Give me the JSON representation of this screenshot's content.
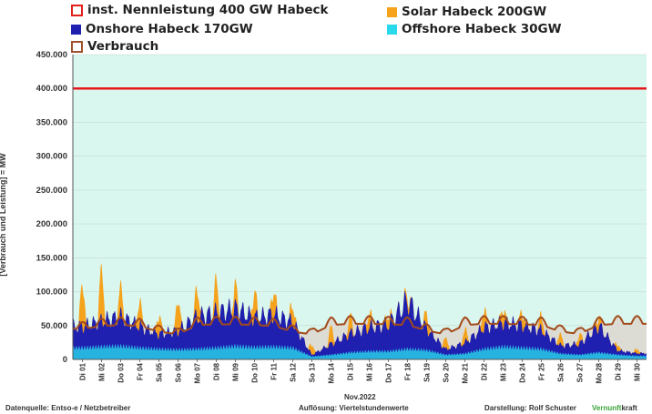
{
  "legend": {
    "cap_label": "inst. Nennleistung 400 GW Habeck",
    "solar_label": "Solar Habeck 200GW",
    "onshore_label": "Onshore Habeck 170GW",
    "offshore_label": "Offshore Habeck 30GW",
    "consumption_label": "Verbrauch"
  },
  "footer": {
    "source": "Datenquelle: Entso-e  / Netzbetreiber",
    "resolution": "Auflösung: Viertelstundenwerte",
    "author": "Darstellung:  Rolf Schuster",
    "brand_a": "Vernunft",
    "brand_b": "kraft"
  },
  "colors": {
    "background": "#d9f7ee",
    "capacity": "#e8161a",
    "solar": "#f5a21c",
    "onshore": "#1f1fb0",
    "offshore": "#27b3e0",
    "consumption": "#a24b1c",
    "consumption_fill": "#dcdcd4",
    "brand_green": "#3aa33a"
  },
  "chart_data": {
    "type": "area",
    "title": "",
    "xlabel": "Nov.2022",
    "ylabel": "[Verbrauch und Leistung] =  MW",
    "ylim": [
      0,
      450000
    ],
    "yticks": [
      "0",
      "50.000",
      "100.000",
      "150.000",
      "200.000",
      "250.000",
      "300.000",
      "350.000",
      "400.000",
      "450.000"
    ],
    "capacity_line": 400000,
    "x": [
      "Di 01",
      "Mi 02",
      "Do 03",
      "Fr 04",
      "Sa 05",
      "So 06",
      "Mo 07",
      "Di 08",
      "Mi 09",
      "Do 10",
      "Fr 11",
      "Sa 12",
      "So 13",
      "Mo 14",
      "Di 15",
      "Mi 16",
      "Do 17",
      "Fr 18",
      "Sa 19",
      "So 20",
      "Mo 21",
      "Di 22",
      "Mi 23",
      "Do 24",
      "Fr 25",
      "Sa 26",
      "So 27",
      "Mo 28",
      "Di 29",
      "Mi 30"
    ],
    "series": [
      {
        "name": "Offshore Habeck 30GW",
        "values": [
          20000,
          22000,
          23000,
          20000,
          18000,
          17000,
          18000,
          20000,
          23000,
          21000,
          22000,
          20000,
          5000,
          8000,
          12000,
          14000,
          14000,
          18000,
          16000,
          8000,
          10000,
          18000,
          22000,
          20000,
          18000,
          10000,
          8000,
          12000,
          8000,
          6000
        ]
      },
      {
        "name": "Onshore Habeck 170GW",
        "values": [
          40000,
          48000,
          55000,
          40000,
          28000,
          35000,
          60000,
          65000,
          70000,
          55000,
          60000,
          48000,
          3000,
          20000,
          35000,
          45000,
          50000,
          90000,
          40000,
          10000,
          20000,
          40000,
          45000,
          42000,
          35000,
          15000,
          20000,
          50000,
          8000,
          5000
        ]
      },
      {
        "name": "Solar Habeck 200GW",
        "values": [
          60000,
          75000,
          40000,
          35000,
          25000,
          45000,
          40000,
          45000,
          30000,
          35000,
          35000,
          25000,
          12000,
          25000,
          25000,
          20000,
          15000,
          10000,
          20000,
          15000,
          18000,
          25000,
          20000,
          18000,
          20000,
          15000,
          12000,
          15000,
          8000,
          6000
        ]
      },
      {
        "name": "Verbrauch",
        "values": [
          55000,
          60000,
          62000,
          60000,
          50000,
          45000,
          62000,
          63000,
          63000,
          62000,
          60000,
          50000,
          45000,
          62000,
          64000,
          64000,
          63000,
          62000,
          52000,
          45000,
          62000,
          64000,
          64000,
          63000,
          62000,
          50000,
          46000,
          62000,
          64000,
          64000
        ]
      }
    ]
  }
}
